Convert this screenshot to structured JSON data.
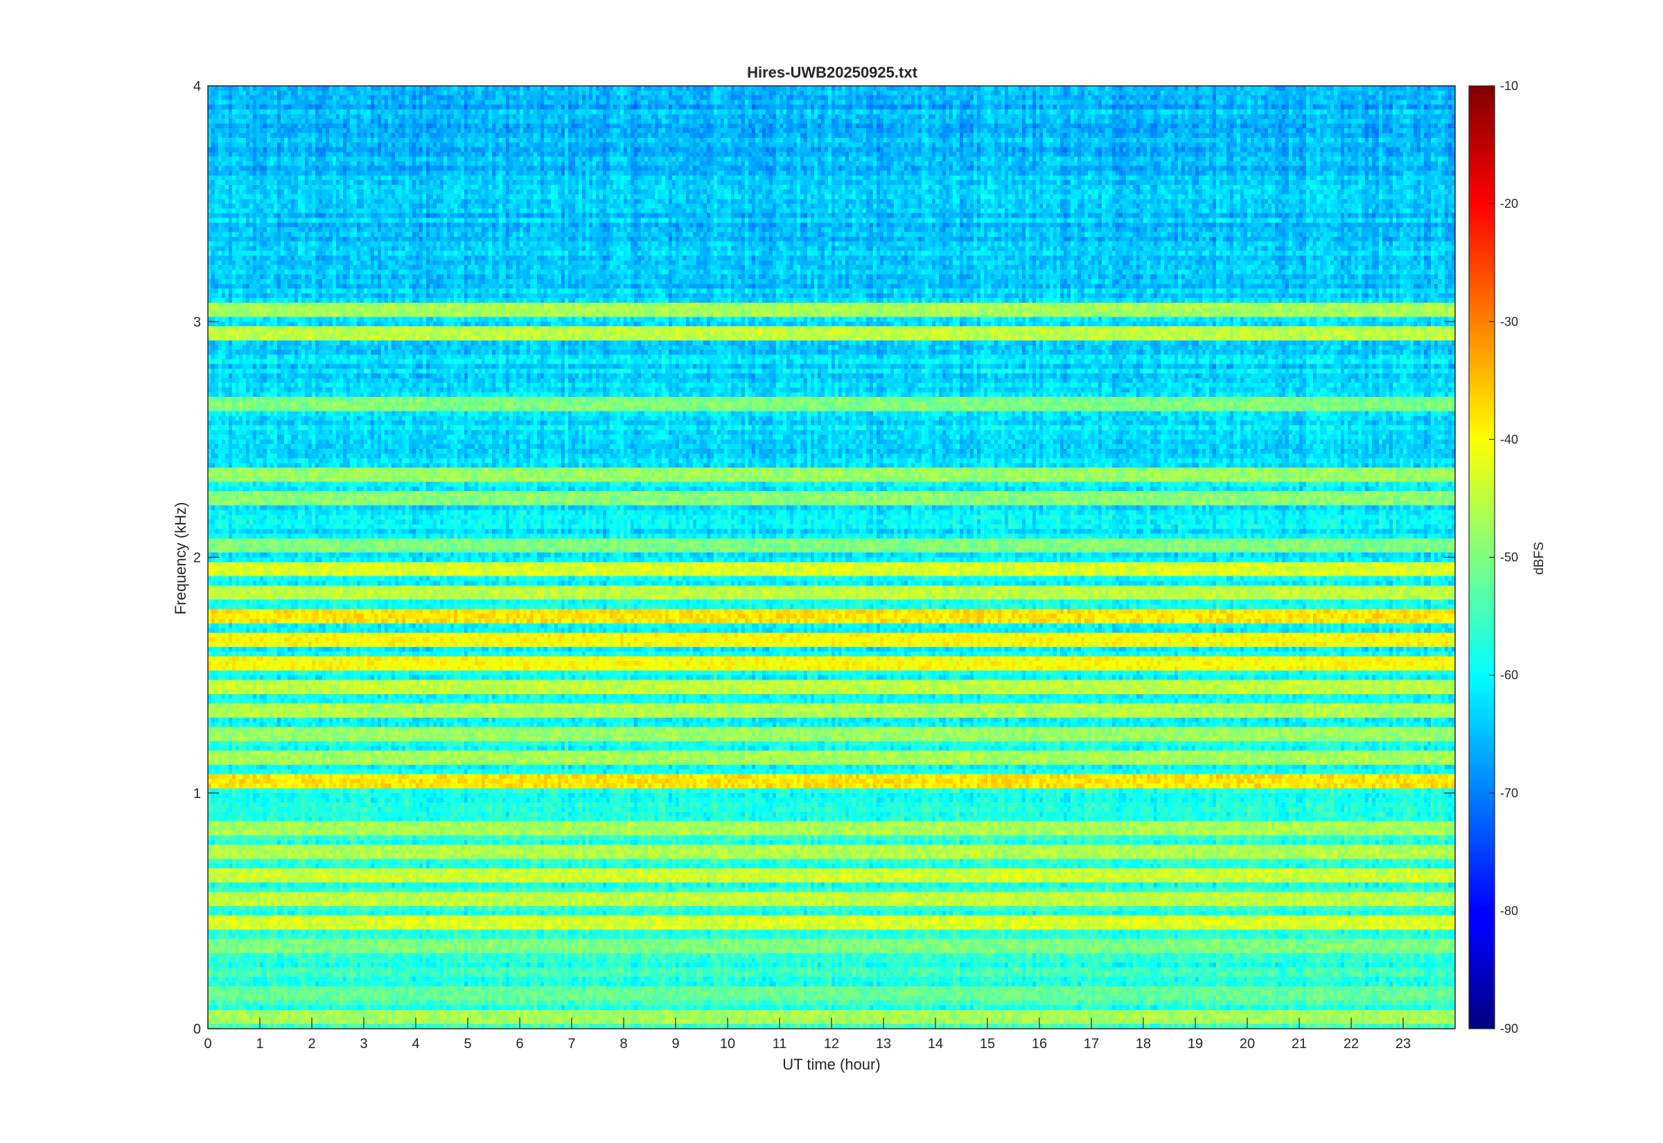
{
  "chart_data": {
    "type": "heatmap",
    "title": "Hires-UWB20250925.txt",
    "xlabel": "UT time (hour)",
    "ylabel": "Frequency (kHz)",
    "xlim": [
      0,
      24
    ],
    "ylim": [
      0,
      4
    ],
    "x_ticks": [
      "0",
      "1",
      "2",
      "3",
      "4",
      "5",
      "6",
      "7",
      "8",
      "9",
      "10",
      "11",
      "12",
      "13",
      "14",
      "15",
      "16",
      "17",
      "18",
      "19",
      "20",
      "21",
      "22",
      "23"
    ],
    "y_ticks": [
      "0",
      "1",
      "2",
      "3",
      "4"
    ],
    "colorbar": {
      "label": "dBFS",
      "range": [
        -90,
        -10
      ],
      "ticks": [
        "-10",
        "-20",
        "-30",
        "-40",
        "-50",
        "-60",
        "-70",
        "-80",
        "-90"
      ],
      "colormap": "jet"
    },
    "frequency_bands_khz": [
      0.05,
      0.15,
      0.35,
      0.45,
      0.55,
      0.65,
      0.75,
      0.85,
      1.05,
      1.15,
      1.25,
      1.35,
      1.45,
      1.55,
      1.65,
      1.75,
      1.85,
      1.95,
      2.05,
      2.25,
      2.35,
      2.65,
      2.95,
      3.05
    ],
    "band_levels_dbfs": [
      -47,
      -52,
      -50,
      -43,
      -45,
      -44,
      -46,
      -47,
      -38,
      -47,
      -48,
      -46,
      -45,
      -40,
      -40,
      -38,
      -45,
      -43,
      -50,
      -49,
      -48,
      -50,
      -45,
      -47
    ],
    "background_level_dbfs_low": -56,
    "background_level_dbfs_high": -66,
    "grid": false
  }
}
